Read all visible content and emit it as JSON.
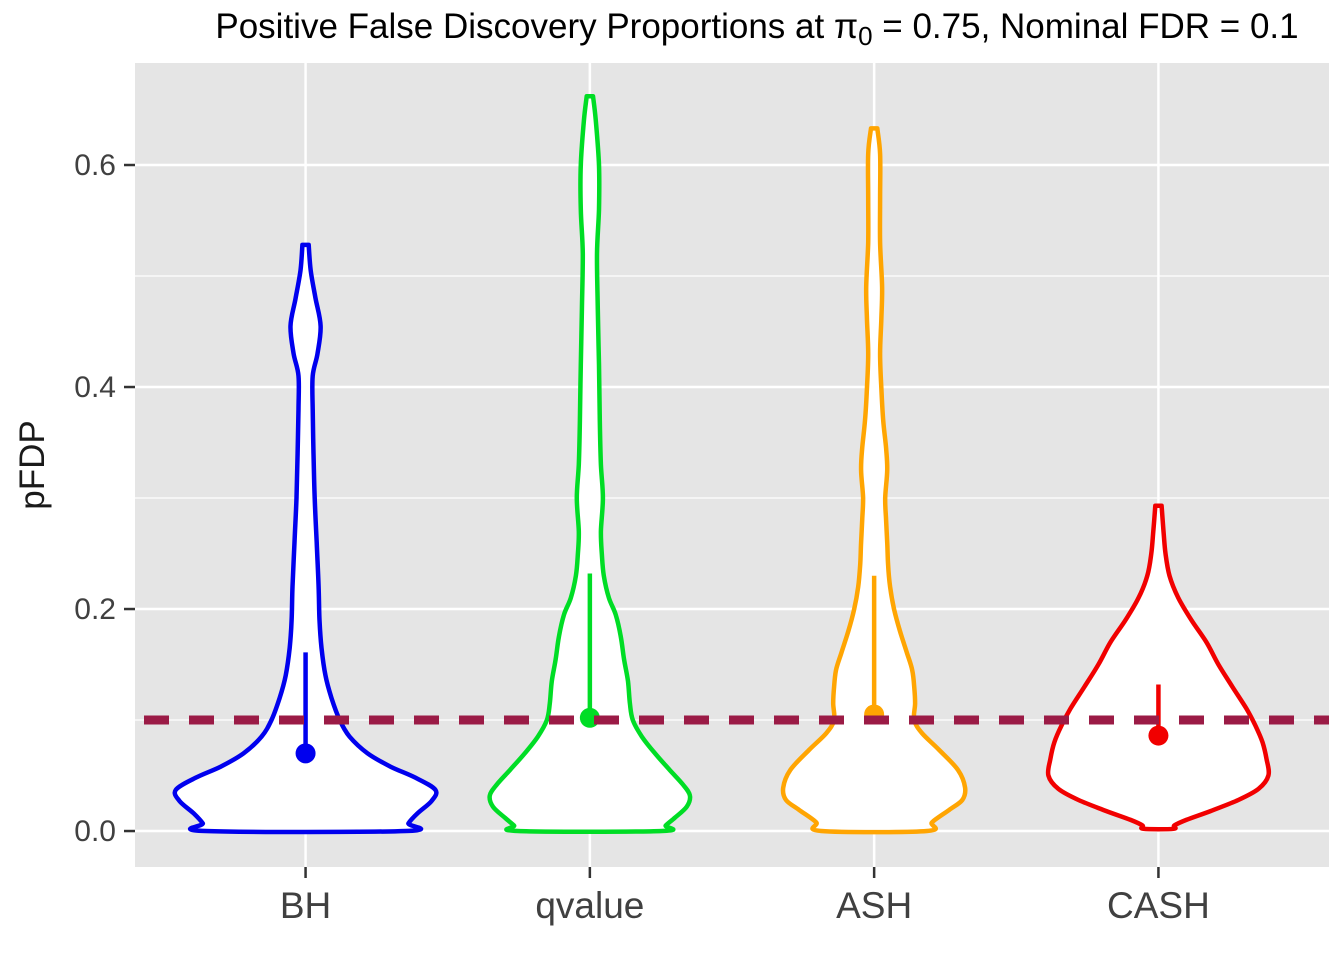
{
  "title": {
    "pre": "Positive False Discovery Proportions at π",
    "sub": "0",
    "post": " = 0.75, Nominal FDR = 0.1"
  },
  "axes": {
    "y": {
      "title": "pFDP"
    },
    "x": {
      "title": ""
    }
  },
  "chart_data": {
    "type": "violin",
    "title": "Positive False Discovery Proportions at π0 = 0.75, Nominal FDR = 0.1",
    "xlabel": "",
    "ylabel": "pFDP",
    "categories": [
      "BH",
      "qvalue",
      "ASH",
      "CASH"
    ],
    "colors": [
      "#0000EE",
      "#00DD25",
      "#FFA502",
      "#F10000"
    ],
    "panel_bg": "#E5E5E5",
    "grid_color": "#FFFFFF",
    "axis_text_color": "#404040",
    "grid": true,
    "legend": "none",
    "ylim": [
      -0.0324,
      0.6919
    ],
    "y_ticks": [
      0.0,
      0.2,
      0.4,
      0.6
    ],
    "y_tick_labels": [
      "0.0",
      "0.2",
      "0.4",
      "0.6"
    ],
    "y_minor_ticks": [
      0.1,
      0.3,
      0.5
    ],
    "nominal_fdr_line": {
      "y": 0.1,
      "color": "#9B1B46",
      "style": "dashed"
    },
    "series": [
      {
        "name": "BH",
        "color": "#0000EE",
        "mean_point": 0.07,
        "upper_bar": 0.161,
        "max_value": 0.528,
        "profile": [
          [
            0.528,
            0.011
          ],
          [
            0.505,
            0.018
          ],
          [
            0.48,
            0.035
          ],
          [
            0.455,
            0.053
          ],
          [
            0.43,
            0.042
          ],
          [
            0.41,
            0.025
          ],
          [
            0.38,
            0.025
          ],
          [
            0.34,
            0.028
          ],
          [
            0.3,
            0.032
          ],
          [
            0.26,
            0.039
          ],
          [
            0.22,
            0.046
          ],
          [
            0.19,
            0.049
          ],
          [
            0.165,
            0.056
          ],
          [
            0.14,
            0.07
          ],
          [
            0.12,
            0.091
          ],
          [
            0.1,
            0.12
          ],
          [
            0.085,
            0.155
          ],
          [
            0.07,
            0.218
          ],
          [
            0.058,
            0.299
          ],
          [
            0.048,
            0.387
          ],
          [
            0.037,
            0.457
          ],
          [
            0.027,
            0.443
          ],
          [
            0.016,
            0.394
          ],
          [
            0.007,
            0.362
          ],
          [
            0.0,
            0.352
          ]
        ]
      },
      {
        "name": "qvalue",
        "color": "#00DD25",
        "mean_point": 0.102,
        "upper_bar": 0.232,
        "max_value": 0.662,
        "profile": [
          [
            0.662,
            0.011
          ],
          [
            0.64,
            0.021
          ],
          [
            0.6,
            0.032
          ],
          [
            0.56,
            0.032
          ],
          [
            0.52,
            0.025
          ],
          [
            0.47,
            0.028
          ],
          [
            0.42,
            0.032
          ],
          [
            0.37,
            0.035
          ],
          [
            0.33,
            0.039
          ],
          [
            0.3,
            0.046
          ],
          [
            0.27,
            0.039
          ],
          [
            0.25,
            0.042
          ],
          [
            0.23,
            0.049
          ],
          [
            0.21,
            0.067
          ],
          [
            0.195,
            0.091
          ],
          [
            0.175,
            0.109
          ],
          [
            0.155,
            0.12
          ],
          [
            0.135,
            0.134
          ],
          [
            0.115,
            0.141
          ],
          [
            0.1,
            0.151
          ],
          [
            0.085,
            0.183
          ],
          [
            0.07,
            0.229
          ],
          [
            0.055,
            0.281
          ],
          [
            0.042,
            0.327
          ],
          [
            0.032,
            0.352
          ],
          [
            0.022,
            0.341
          ],
          [
            0.012,
            0.299
          ],
          [
            0.005,
            0.267
          ],
          [
            0.0,
            0.253
          ]
        ]
      },
      {
        "name": "ASH",
        "color": "#FFA502",
        "mean_point": 0.105,
        "upper_bar": 0.23,
        "max_value": 0.633,
        "profile": [
          [
            0.633,
            0.011
          ],
          [
            0.61,
            0.021
          ],
          [
            0.57,
            0.021
          ],
          [
            0.53,
            0.021
          ],
          [
            0.49,
            0.028
          ],
          [
            0.46,
            0.025
          ],
          [
            0.43,
            0.021
          ],
          [
            0.4,
            0.025
          ],
          [
            0.37,
            0.032
          ],
          [
            0.345,
            0.042
          ],
          [
            0.325,
            0.046
          ],
          [
            0.3,
            0.039
          ],
          [
            0.28,
            0.042
          ],
          [
            0.26,
            0.046
          ],
          [
            0.24,
            0.049
          ],
          [
            0.22,
            0.056
          ],
          [
            0.2,
            0.07
          ],
          [
            0.18,
            0.091
          ],
          [
            0.16,
            0.116
          ],
          [
            0.145,
            0.134
          ],
          [
            0.13,
            0.141
          ],
          [
            0.115,
            0.144
          ],
          [
            0.1,
            0.141
          ],
          [
            0.088,
            0.169
          ],
          [
            0.073,
            0.229
          ],
          [
            0.055,
            0.295
          ],
          [
            0.039,
            0.32
          ],
          [
            0.028,
            0.31
          ],
          [
            0.019,
            0.264
          ],
          [
            0.008,
            0.204
          ],
          [
            0.0,
            0.186
          ]
        ]
      },
      {
        "name": "CASH",
        "color": "#F10000",
        "mean_point": 0.086,
        "upper_bar": 0.132,
        "max_value": 0.293,
        "profile": [
          [
            0.293,
            0.011
          ],
          [
            0.27,
            0.018
          ],
          [
            0.25,
            0.025
          ],
          [
            0.23,
            0.039
          ],
          [
            0.21,
            0.07
          ],
          [
            0.19,
            0.116
          ],
          [
            0.17,
            0.169
          ],
          [
            0.15,
            0.211
          ],
          [
            0.13,
            0.26
          ],
          [
            0.11,
            0.31
          ],
          [
            0.095,
            0.341
          ],
          [
            0.08,
            0.366
          ],
          [
            0.065,
            0.38
          ],
          [
            0.05,
            0.387
          ],
          [
            0.038,
            0.352
          ],
          [
            0.028,
            0.281
          ],
          [
            0.018,
            0.183
          ],
          [
            0.01,
            0.098
          ],
          [
            0.005,
            0.056
          ],
          [
            0.002,
            0.053
          ]
        ]
      }
    ]
  }
}
